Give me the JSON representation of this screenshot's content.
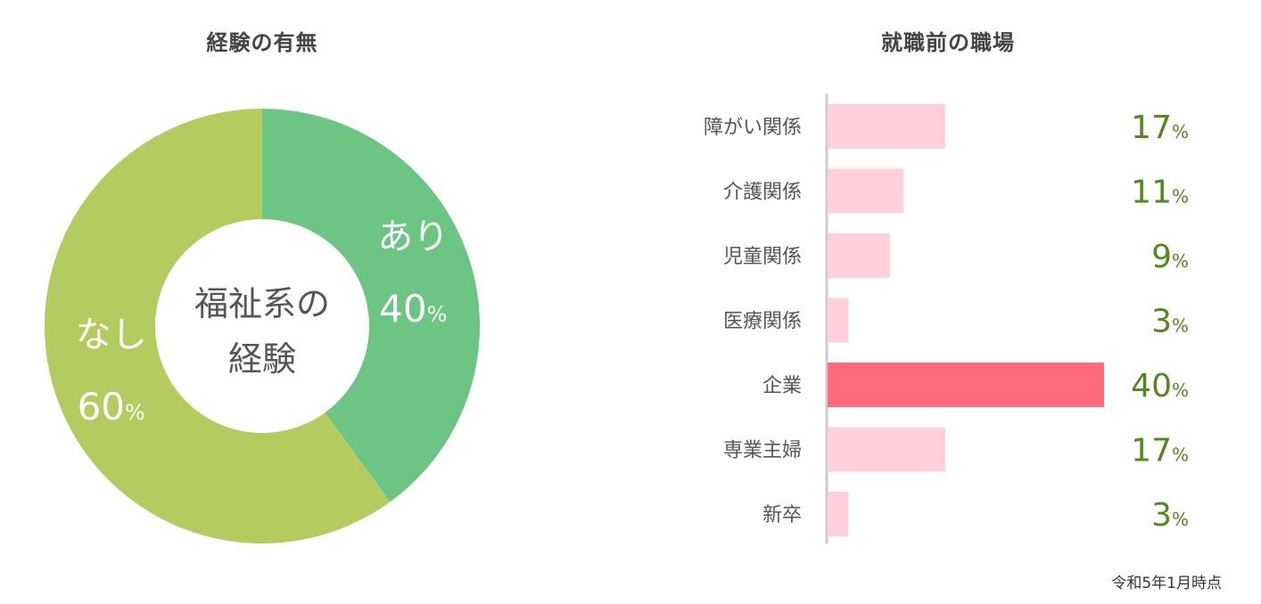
{
  "chart_data": [
    {
      "type": "pie",
      "title": "経験の有無",
      "center_label": [
        "福祉系の",
        "経験"
      ],
      "slices": [
        {
          "label": "あり",
          "value": 40,
          "unit": "%",
          "color": "#6dc584"
        },
        {
          "label": "なし",
          "value": 60,
          "unit": "%",
          "color": "#b4cc5f"
        }
      ]
    },
    {
      "type": "bar",
      "orientation": "horizontal",
      "title": "就職前の職場",
      "categories": [
        "障がい関係",
        "介護関係",
        "児童関係",
        "医療関係",
        "企業",
        "専業主婦",
        "新卒"
      ],
      "values": [
        17,
        11,
        9,
        3,
        40,
        17,
        3
      ],
      "unit": "%",
      "highlight": "企業",
      "colors": {
        "bar": "#ffd0da",
        "highlight": "#ff6a7d",
        "value_text": "#4f8a1b",
        "axis": "#cccccc"
      }
    }
  ],
  "footnote": "令和5年1月時点"
}
